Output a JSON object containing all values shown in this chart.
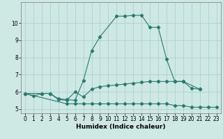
{
  "xlabel": "Humidex (Indice chaleur)",
  "line_color": "#2a7a6e",
  "bg_color": "#cee8e4",
  "grid_color": "#aaccca",
  "ylim": [
    4.75,
    11.2
  ],
  "yticks": [
    5,
    6,
    7,
    8,
    9,
    10
  ],
  "xticks": [
    0,
    1,
    2,
    3,
    4,
    5,
    6,
    7,
    8,
    9,
    10,
    11,
    12,
    13,
    14,
    15,
    16,
    17,
    18,
    19,
    20,
    21,
    22,
    23
  ],
  "s1_x": [
    0,
    1,
    2,
    3,
    4,
    5,
    6,
    7,
    8,
    9,
    11,
    12,
    13,
    14,
    15,
    16,
    17,
    18,
    19,
    21
  ],
  "s1_y": [
    5.9,
    5.75,
    5.9,
    5.9,
    5.6,
    5.55,
    5.5,
    6.65,
    8.4,
    9.2,
    10.4,
    10.4,
    10.45,
    10.45,
    9.75,
    9.75,
    7.9,
    6.6,
    6.6,
    6.15
  ],
  "s2_x": [
    0,
    2,
    3,
    4,
    5,
    6,
    7,
    8,
    9,
    10,
    11,
    12,
    13,
    14,
    15,
    16,
    17,
    18,
    19,
    20,
    21
  ],
  "s2_y": [
    5.9,
    5.9,
    5.9,
    5.55,
    5.5,
    6.0,
    5.7,
    6.15,
    6.3,
    6.35,
    6.4,
    6.45,
    6.5,
    6.55,
    6.6,
    6.6,
    6.6,
    6.6,
    6.6,
    6.2,
    6.15
  ],
  "s3_x": [
    0,
    5,
    6,
    7,
    8,
    9,
    10,
    11,
    12,
    13,
    14,
    15,
    16,
    17,
    18,
    19,
    20,
    21,
    22,
    23
  ],
  "s3_y": [
    5.9,
    5.3,
    5.3,
    5.3,
    5.3,
    5.3,
    5.3,
    5.3,
    5.3,
    5.3,
    5.3,
    5.3,
    5.3,
    5.3,
    5.2,
    5.2,
    5.1,
    5.1,
    5.1,
    5.1
  ]
}
